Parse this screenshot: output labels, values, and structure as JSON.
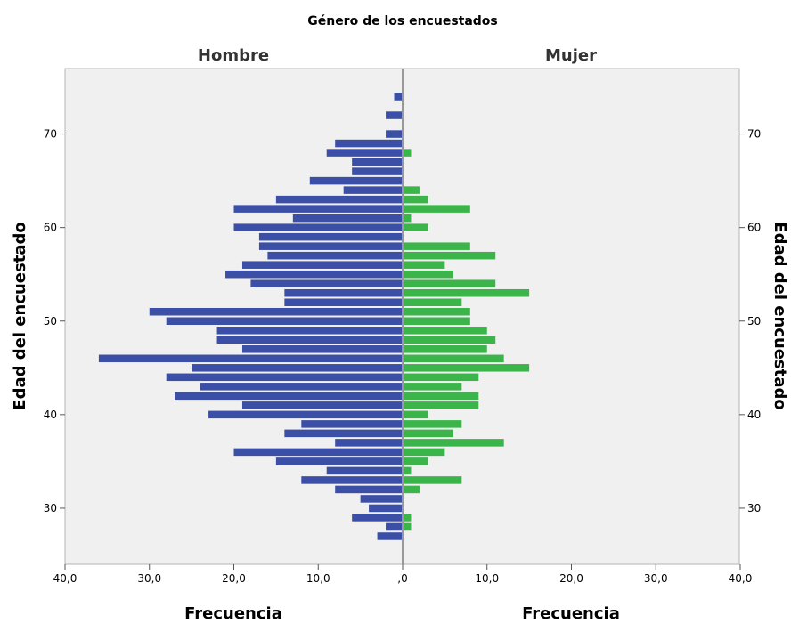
{
  "chart_data": {
    "type": "bar",
    "orientation": "horizontal",
    "title": "Género de los encuestados",
    "panels": [
      "Hombre",
      "Mujer"
    ],
    "xlabel": "Frecuencia",
    "ylabel": "Edad del encuestado",
    "x_ticks": [
      "40,0",
      "30,0",
      "20,0",
      "10,0",
      ",0",
      "10,0",
      "20,0",
      "30,0",
      "40,0"
    ],
    "xlim": [
      0,
      40
    ],
    "y_ticks": [
      30,
      40,
      50,
      60,
      70
    ],
    "ylim": [
      24,
      77
    ],
    "grid": false,
    "colors": {
      "Hombre": "#3c4fa6",
      "Mujer": "#3bb54a",
      "plot_bg": "#f0f0f0",
      "center_line": "#999999",
      "frame": "#b4b4b4"
    },
    "series": [
      {
        "name": "Hombre",
        "ages": [
          27,
          28,
          29,
          30,
          31,
          32,
          33,
          34,
          35,
          36,
          37,
          38,
          39,
          40,
          41,
          42,
          43,
          44,
          45,
          46,
          47,
          48,
          49,
          50,
          51,
          52,
          53,
          54,
          55,
          56,
          57,
          58,
          59,
          60,
          61,
          62,
          63,
          64,
          65,
          66,
          67,
          68,
          69,
          70,
          72,
          74
        ],
        "values": [
          3,
          2,
          6,
          4,
          5,
          8,
          12,
          9,
          15,
          20,
          8,
          14,
          12,
          23,
          19,
          27,
          24,
          28,
          25,
          36,
          19,
          22,
          22,
          28,
          30,
          14,
          14,
          18,
          21,
          19,
          16,
          17,
          17,
          20,
          13,
          20,
          15,
          7,
          11,
          6,
          6,
          9,
          8,
          2,
          2,
          1
        ]
      },
      {
        "name": "Mujer",
        "ages": [
          28,
          29,
          32,
          33,
          34,
          35,
          36,
          37,
          38,
          39,
          40,
          41,
          42,
          43,
          44,
          45,
          46,
          47,
          48,
          49,
          50,
          51,
          52,
          53,
          54,
          55,
          56,
          57,
          58,
          60,
          61,
          62,
          63,
          64,
          68
        ],
        "values": [
          1,
          1,
          2,
          7,
          1,
          3,
          5,
          12,
          6,
          7,
          3,
          9,
          9,
          7,
          9,
          15,
          12,
          10,
          11,
          10,
          8,
          8,
          7,
          15,
          11,
          6,
          5,
          11,
          8,
          3,
          1,
          8,
          3,
          2,
          1
        ]
      }
    ]
  }
}
